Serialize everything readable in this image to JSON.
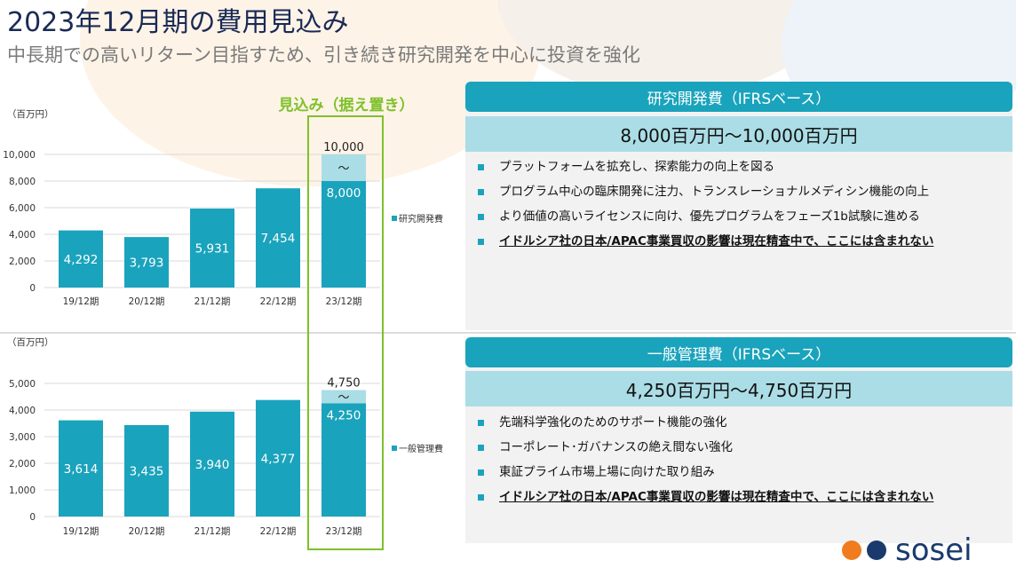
{
  "header": {
    "title": "2023年12月期の費用見込み",
    "subtitle": "中長期での高いリターン目指すため、引き続き研究開発を中心に投資を強化"
  },
  "forecast": {
    "label": "見込み（据え置き）"
  },
  "colors": {
    "bar": "#1aa3bc",
    "bar_upper": "#abdde6",
    "forecast_border": "#7ec12a",
    "header": "#1a2a55"
  },
  "chart_data": [
    {
      "type": "bar",
      "unit_label": "（百万円）",
      "categories": [
        "19/12期",
        "20/12期",
        "21/12期",
        "22/12期",
        "23/12期"
      ],
      "values": [
        4292,
        3793,
        5931,
        7454,
        8000
      ],
      "value_labels": [
        "4,292",
        "3,793",
        "5,931",
        "7,454",
        "8,000"
      ],
      "forecast_upper": 10000,
      "forecast_upper_label": "10,000",
      "range_mark": "～",
      "yticks": [
        0,
        2000,
        4000,
        6000,
        8000,
        10000
      ],
      "ytick_labels": [
        "0",
        "2,000",
        "4,000",
        "6,000",
        "8,000",
        "10,000"
      ],
      "ylim": [
        0,
        10000
      ],
      "legend": "研究開発費",
      "grid": true
    },
    {
      "type": "bar",
      "unit_label": "（百万円）",
      "categories": [
        "19/12期",
        "20/12期",
        "21/12期",
        "22/12期",
        "23/12期"
      ],
      "values": [
        3614,
        3435,
        3940,
        4377,
        4250
      ],
      "value_labels": [
        "3,614",
        "3,435",
        "3,940",
        "4,377",
        "4,250"
      ],
      "forecast_upper": 4750,
      "forecast_upper_label": "4,750",
      "range_mark": "～",
      "yticks": [
        0,
        1000,
        2000,
        3000,
        4000,
        5000
      ],
      "ytick_labels": [
        "0",
        "1,000",
        "2,000",
        "3,000",
        "4,000",
        "5,000"
      ],
      "ylim": [
        0,
        5000
      ],
      "legend": "一般管理費",
      "grid": true
    }
  ],
  "panels": {
    "rd": {
      "title": "研究開発費（IFRSベース）",
      "range": "8,000百万円～10,000百万円",
      "items": [
        "プラットフォームを拡充し、探索能力の向上を図る",
        "プログラム中心の臨床開発に注力、トランスレーショナルメディシン機能の向上",
        "より価値の高いライセンスに向け、優先プログラムをフェーズ1b試験に進める"
      ],
      "note": "イドルシア社の日本/APAC事業買収の影響は現在精査中で、ここには含まれない"
    },
    "ga": {
      "title": "一般管理費（IFRSベース）",
      "range": "4,250百万円～4,750百万円",
      "items": [
        "先端科学強化のためのサポート機能の強化",
        "コーポレート･ガバナンスの絶え間ない強化",
        "東証プライム市場上場に向けた取り組み"
      ],
      "note": "イドルシア社の日本/APAC事業買収の影響は現在精査中で、ここには含まれない"
    }
  },
  "logo": {
    "text": "sosei"
  }
}
